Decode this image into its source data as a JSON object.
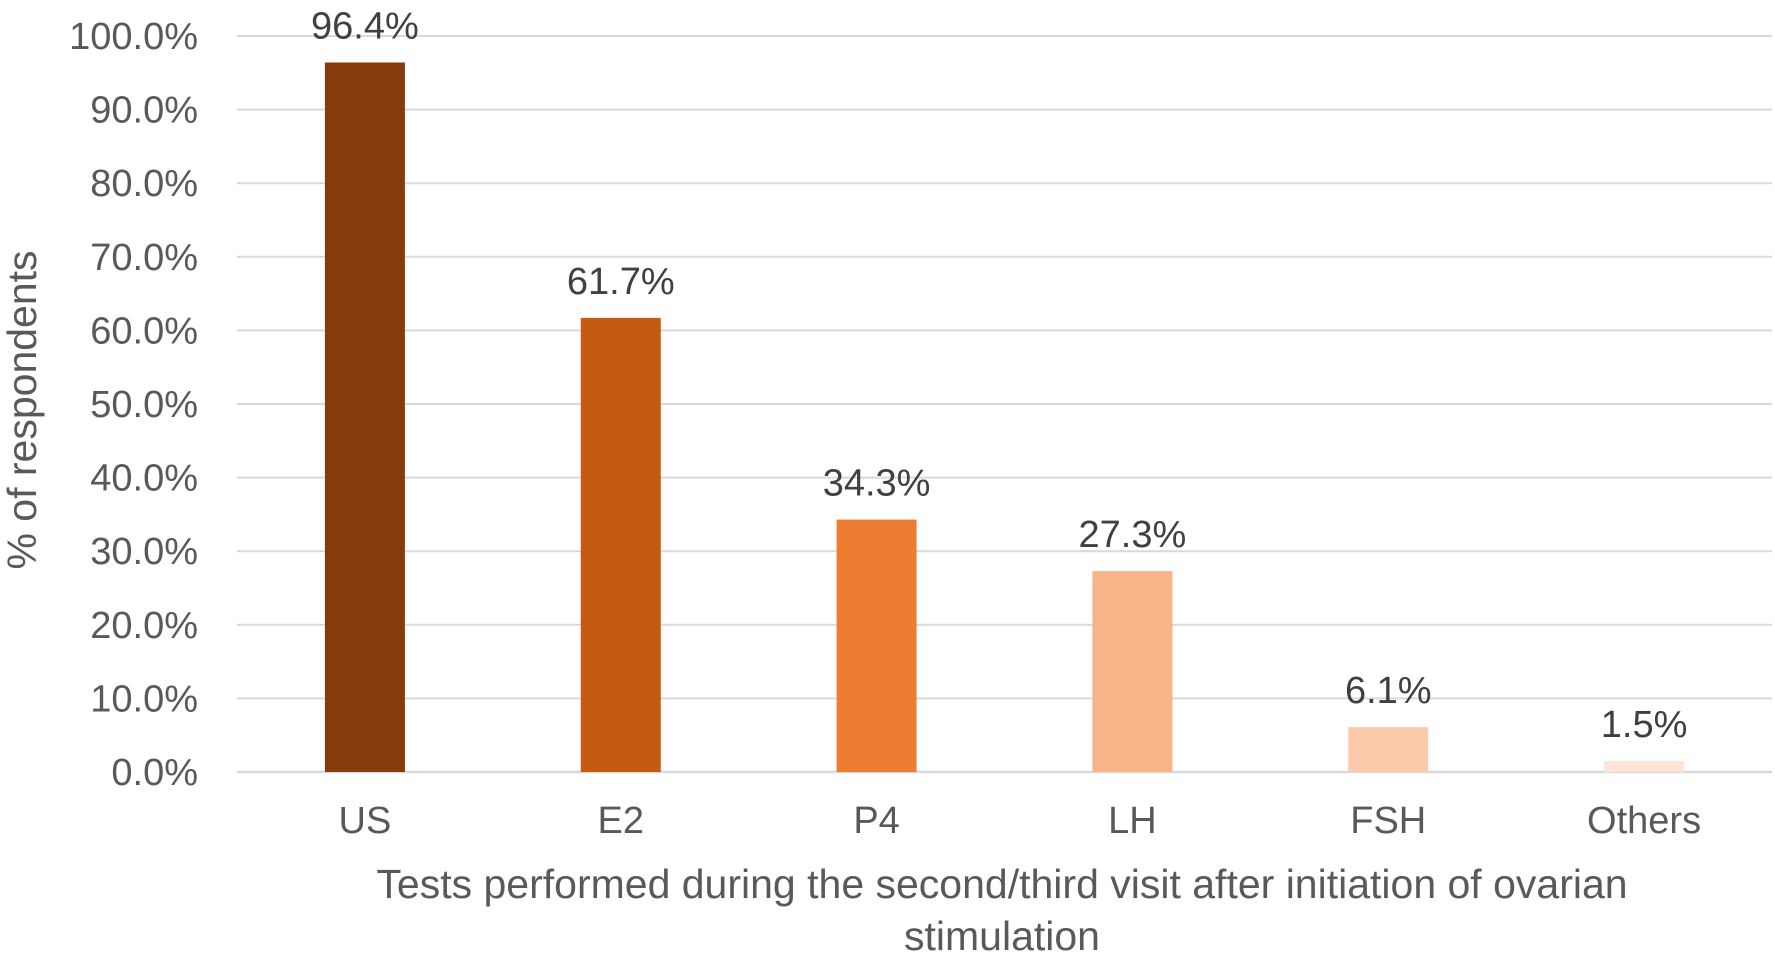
{
  "chart_data": {
    "type": "bar",
    "categories": [
      "US",
      "E2",
      "P4",
      "LH",
      "FSH",
      "Others"
    ],
    "values": [
      96.4,
      61.7,
      34.3,
      27.3,
      6.1,
      1.5
    ],
    "data_labels": [
      "96.4%",
      "61.7%",
      "34.3%",
      "27.3%",
      "6.1%",
      "1.5%"
    ],
    "colors": [
      "#843C0C",
      "#C55A11",
      "#ED7D31",
      "#F8B386",
      "#FBCBAB",
      "#FCE4D6"
    ],
    "title": "",
    "xlabel_line1": "Tests performed during the second/third visit after initiation of ovarian",
    "xlabel_line2": "stimulation",
    "ylabel": "% of respondents",
    "ylim": [
      0,
      100
    ],
    "yticks": [
      0,
      10,
      20,
      30,
      40,
      50,
      60,
      70,
      80,
      90,
      100
    ],
    "ytick_labels": [
      "0.0%",
      "10.0%",
      "20.0%",
      "30.0%",
      "40.0%",
      "50.0%",
      "60.0%",
      "70.0%",
      "80.0%",
      "90.0%",
      "100.0%"
    ],
    "grid": true,
    "legend": "none"
  }
}
